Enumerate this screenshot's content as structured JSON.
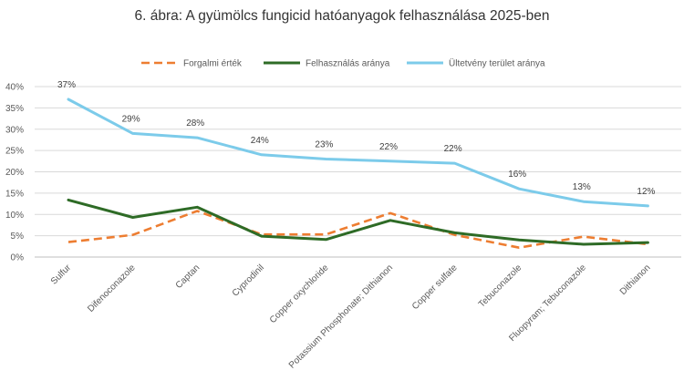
{
  "chart_data": {
    "type": "line",
    "title": "6. ábra: A gyümölcs fungicid hatóanyagok felhasználása 2025-ben",
    "xlabel": "",
    "ylabel": "",
    "ylim": [
      0,
      40
    ],
    "yticks": [
      "0%",
      "5%",
      "10%",
      "15%",
      "20%",
      "25%",
      "30%",
      "35%",
      "40%"
    ],
    "grid": true,
    "legend_position": "top",
    "categories": [
      "Sulfur",
      "Difenoconazole",
      "Captan",
      "Cyprodinil",
      "Copper oxychloride",
      "Potassium Phosphonate; Dithianon",
      "Copper sulfate",
      "Tebuconazole",
      "Fluopyram; Tebuconazole",
      "Dithianon"
    ],
    "series": [
      {
        "name": "Forgalmi érték",
        "color": "#ED7D31",
        "style": "dashed",
        "values": [
          3.5,
          5.2,
          10.8,
          5.3,
          5.3,
          10.3,
          5.2,
          2.2,
          4.8,
          3.0
        ]
      },
      {
        "name": "Felhasználás aránya",
        "color": "#2E6B26",
        "style": "solid",
        "values": [
          13.4,
          9.3,
          11.7,
          4.9,
          4.1,
          8.6,
          5.7,
          4.0,
          3.0,
          3.4
        ]
      },
      {
        "name": "Ültetvény terület aránya",
        "color": "#7CCBEA",
        "style": "solid",
        "values": [
          37,
          29,
          28,
          24,
          23,
          22.5,
          22,
          16,
          13,
          12
        ],
        "data_labels": [
          "37%",
          "29%",
          "28%",
          "24%",
          "23%",
          "22%",
          "22%",
          "16%",
          "13%",
          "12%"
        ]
      }
    ]
  }
}
